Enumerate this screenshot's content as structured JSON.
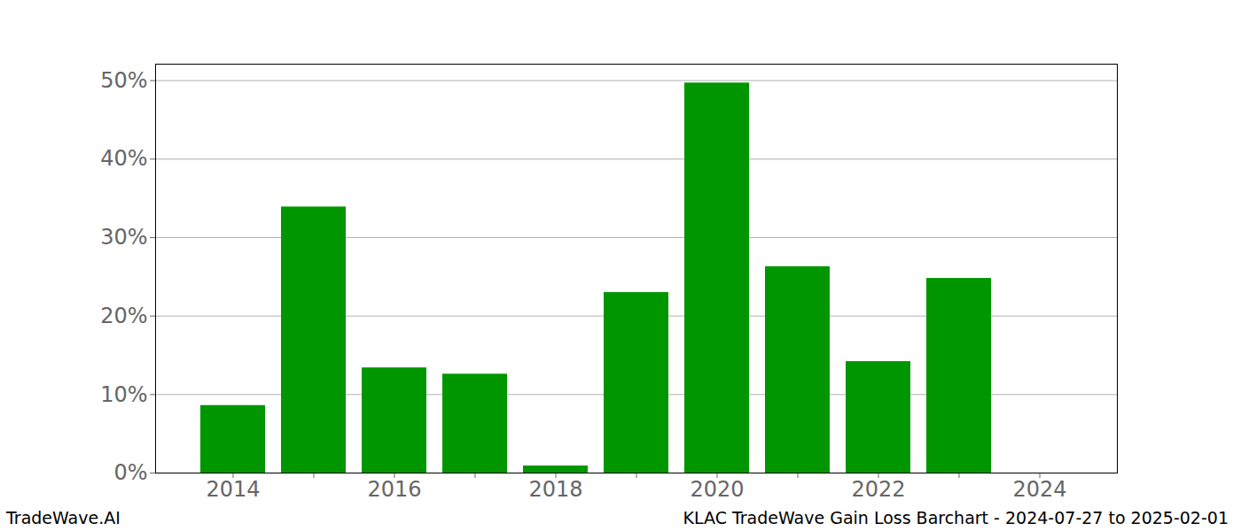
{
  "chart_data": {
    "type": "bar",
    "title": "KLAC TradeWave Gain Loss Barchart - 2024-07-27 to 2025-02-01",
    "annotations": [
      "TradeWave.AI"
    ],
    "categories": [
      "2014",
      null,
      "2016",
      null,
      "2018",
      null,
      "2020",
      null,
      "2022",
      null,
      "2024"
    ],
    "values": [
      8.6,
      33.9,
      13.4,
      12.6,
      0.9,
      23.0,
      49.7,
      26.3,
      14.2,
      24.8,
      0
    ],
    "color": "#009600",
    "ylim": [
      0,
      52.1
    ],
    "yticks": [
      {
        "value": 0,
        "label": "0%"
      },
      {
        "value": 10,
        "label": "10%"
      },
      {
        "value": 20,
        "label": "20%"
      },
      {
        "value": 30,
        "label": "30%"
      },
      {
        "value": 40,
        "label": "40%"
      },
      {
        "value": 50,
        "label": "50%"
      }
    ],
    "grid": true
  }
}
